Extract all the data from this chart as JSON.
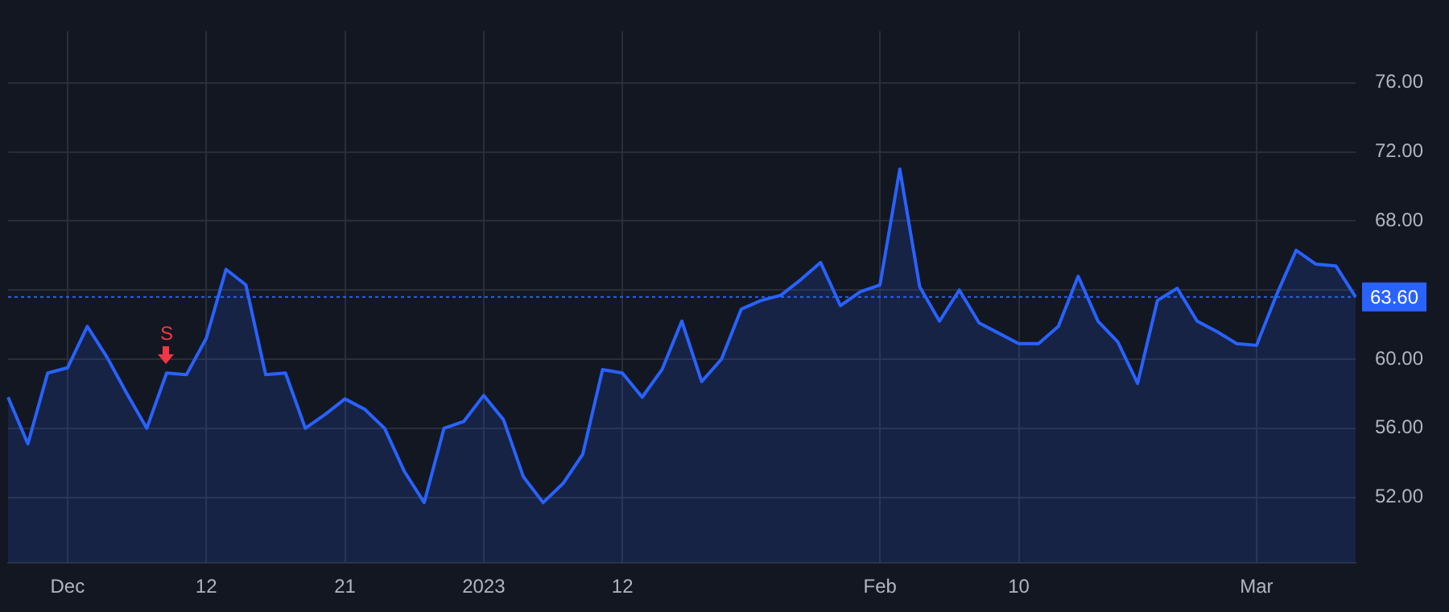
{
  "chart_data": {
    "type": "area",
    "categories": [
      null,
      null,
      null,
      "Dec",
      null,
      null,
      null,
      null,
      null,
      null,
      "12",
      null,
      null,
      null,
      null,
      null,
      null,
      "21",
      null,
      null,
      null,
      null,
      null,
      null,
      "2023",
      null,
      null,
      null,
      null,
      null,
      null,
      "12",
      null,
      null,
      null,
      null,
      null,
      null,
      null,
      null,
      null,
      null,
      null,
      null,
      "Feb",
      null,
      null,
      null,
      null,
      null,
      null,
      "10",
      null,
      null,
      null,
      null,
      null,
      null,
      null,
      null,
      null,
      null,
      null,
      "Mar",
      null,
      null,
      null,
      null,
      null
    ],
    "series": [
      {
        "color": "#2962ff",
        "values": [
          57.8,
          55.1,
          59.2,
          59.5,
          61.9,
          60.1,
          58.0,
          56.0,
          59.2,
          59.1,
          61.2,
          65.2,
          64.3,
          59.1,
          59.2,
          56.0,
          56.8,
          57.7,
          57.1,
          56.0,
          53.5,
          51.7,
          56.0,
          56.4,
          57.9,
          56.5,
          53.2,
          51.7,
          52.8,
          54.5,
          59.4,
          59.2,
          57.8,
          59.4,
          62.2,
          58.7,
          60.0,
          62.9,
          63.4,
          63.7,
          64.6,
          65.6,
          63.1,
          63.9,
          64.3,
          71.0,
          64.2,
          62.2,
          64.0,
          62.1,
          61.5,
          60.9,
          60.9,
          61.9,
          64.8,
          62.2,
          61.0,
          58.6,
          63.4,
          64.1,
          62.2,
          61.6,
          60.9,
          60.8,
          63.7,
          66.3,
          65.5,
          65.4,
          63.6
        ]
      }
    ],
    "ylim": [
      48.2,
      79.0
    ],
    "yticks": [
      {
        "value": 52,
        "label": "52.00"
      },
      {
        "value": 56,
        "label": "56.00"
      },
      {
        "value": 60,
        "label": "60.00"
      },
      {
        "value": 64,
        "label": null
      },
      {
        "value": 68,
        "label": "68.00"
      },
      {
        "value": 72,
        "label": "72.00"
      },
      {
        "value": 76,
        "label": "76.00"
      }
    ],
    "grid": true,
    "ref_lines": [
      {
        "axis": "y",
        "value": 63.6,
        "label": "63.60",
        "color": "#2962ff",
        "line_style": "dotted"
      }
    ],
    "annotations": [
      "S"
    ]
  }
}
